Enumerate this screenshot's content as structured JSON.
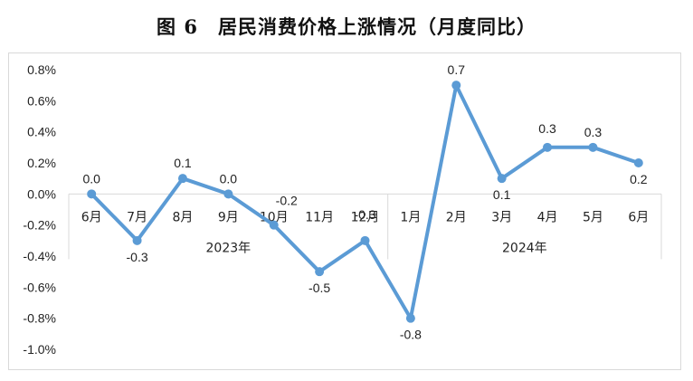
{
  "title": "图 6　居民消费价格上涨情况（月度同比）",
  "chart_data": {
    "type": "line",
    "title": "图 6　居民消费价格上涨情况（月度同比）",
    "categories": [
      "6月",
      "7月",
      "8月",
      "9月",
      "10月",
      "11月",
      "12月",
      "1月",
      "2月",
      "3月",
      "4月",
      "5月",
      "6月"
    ],
    "year_groups": [
      {
        "label": "2023年",
        "count": 7
      },
      {
        "label": "2024年",
        "count": 6
      }
    ],
    "series": [
      {
        "values": [
          0.0,
          -0.3,
          0.1,
          0.0,
          -0.2,
          -0.5,
          -0.3,
          -0.8,
          0.7,
          0.1,
          0.3,
          0.3,
          0.2
        ]
      }
    ],
    "data_labels": [
      "0.0",
      "-0.3",
      "0.1",
      "0.0",
      "-0.2",
      "-0.5",
      "-0.3",
      "-0.8",
      "0.7",
      "0.1",
      "0.3",
      "0.3",
      "0.2"
    ],
    "y_ticks": [
      "0.8%",
      "0.6%",
      "0.4%",
      "0.2%",
      "0.0%",
      "-0.2%",
      "-0.4%",
      "-0.6%",
      "-0.8%",
      "-1.0%"
    ],
    "ylim": [
      -1.0,
      0.8
    ],
    "grid": false,
    "line_color": "#5b9bd5",
    "xlabel": "",
    "ylabel": ""
  }
}
